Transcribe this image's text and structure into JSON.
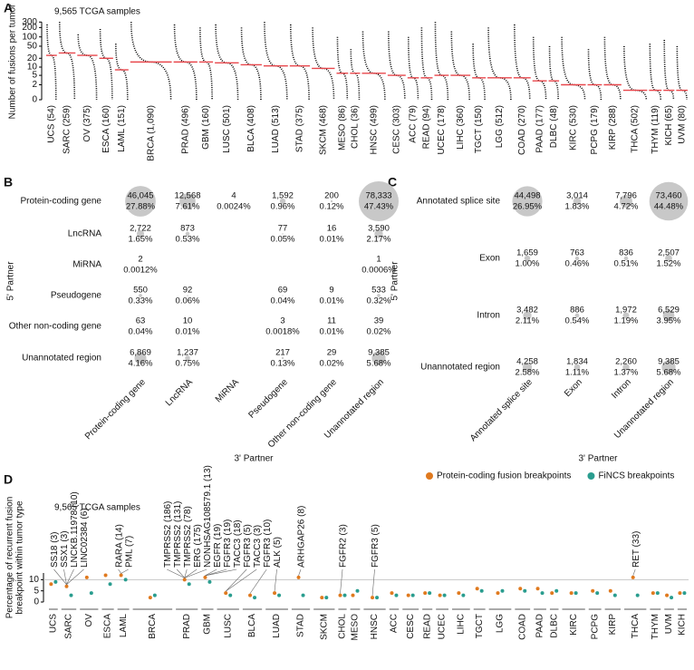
{
  "chart_data": [
    {
      "type": "dotplot",
      "title": "9,565 TCGA samples",
      "ylabel": "Number of fusions per tumor",
      "categories": [
        "UCS",
        "SARC",
        "OV",
        "ESCA",
        "LAML",
        "BRCA",
        "PRAD",
        "GBM",
        "LUSC",
        "BLCA",
        "LUAD",
        "STAD",
        "SKCM",
        "MESO",
        "CHOL",
        "HNSC",
        "CESC",
        "ACC",
        "READ",
        "UCEC",
        "LIHC",
        "TGCT",
        "LGG",
        "COAD",
        "PAAD",
        "DLBC",
        "KIRC",
        "PCPG",
        "KIRP",
        "THCA",
        "THYM",
        "KICH",
        "UVM"
      ],
      "category_labels": [
        "UCS (54)",
        "SARC (259)",
        "OV (375)",
        "ESCA (160)",
        "LAML (151)",
        "BRCA (1,090)",
        "PRAD (496)",
        "GBM (160)",
        "LUSC (501)",
        "BLCA (408)",
        "LUAD (513)",
        "STAD (375)",
        "SKCM (468)",
        "MESO (86)",
        "CHOL (36)",
        "HNSC (499)",
        "CESC (303)",
        "ACC (79)",
        "READ (94)",
        "UCEC (178)",
        "LIHC (360)",
        "TGCT (150)",
        "LGG (512)",
        "COAD (270)",
        "PAAD (177)",
        "DLBC (48)",
        "KIRC (530)",
        "PCPG (179)",
        "KIRP (288)",
        "THCA (502)",
        "THYM (119)",
        "KICH (65)",
        "UVM (80)"
      ],
      "samples": [
        54,
        259,
        375,
        160,
        151,
        1090,
        496,
        160,
        501,
        408,
        513,
        375,
        468,
        86,
        36,
        499,
        303,
        79,
        94,
        178,
        360,
        150,
        512,
        270,
        177,
        48,
        530,
        179,
        288,
        502,
        119,
        65,
        80
      ],
      "max": [
        250,
        300,
        120,
        180,
        60,
        300,
        250,
        200,
        250,
        200,
        300,
        250,
        200,
        100,
        40,
        150,
        150,
        100,
        200,
        300,
        150,
        60,
        200,
        250,
        100,
        50,
        100,
        40,
        100,
        50,
        60,
        80,
        50
      ],
      "median": [
        25,
        30,
        25,
        20,
        8,
        15,
        15,
        15,
        14,
        12,
        11,
        11,
        9,
        6,
        6,
        6,
        5,
        4,
        4,
        5,
        5,
        4,
        4,
        4,
        3,
        3,
        2,
        2,
        2,
        1,
        1,
        1,
        1
      ],
      "min": [
        0,
        0,
        0,
        0,
        0,
        0,
        0,
        0,
        0,
        0,
        0,
        0,
        0,
        0,
        0,
        0,
        0,
        0,
        0,
        0,
        0,
        0,
        0,
        0,
        0,
        0,
        0,
        0,
        0,
        0,
        0,
        0,
        0
      ],
      "ylim": [
        0,
        400
      ],
      "yticks": [
        0,
        2,
        5,
        10,
        20,
        50,
        100,
        200,
        300
      ],
      "scale": "log1p",
      "color": "#000000",
      "median_color": "#e8474c"
    },
    {
      "type": "bubble-matrix",
      "ylabel": "5' Partner",
      "xlabel": "3' Partner",
      "color": "#c8c8c8",
      "categories": [
        "Protein-coding gene",
        "LncRNA",
        "MiRNA",
        "Pseudogene",
        "Other non-coding gene",
        "Unannotated region"
      ],
      "series": [
        {
          "name": "Protein-coding gene",
          "values": [
            46045,
            12568,
            4,
            1592,
            200,
            78333
          ],
          "value_labels": [
            "46,045",
            "12,568",
            "4",
            "1,592",
            "200",
            "78,333"
          ],
          "percent_labels": [
            "27.88%",
            "7.61%",
            "0.0024%",
            "0.96%",
            "0.12%",
            "47.43%"
          ]
        },
        {
          "name": "LncRNA",
          "values": [
            2722,
            873,
            null,
            77,
            16,
            3590
          ],
          "value_labels": [
            "2,722",
            "873",
            null,
            "77",
            "16",
            "3,590"
          ],
          "percent_labels": [
            "1.65%",
            "0.53%",
            null,
            "0.05%",
            "0.01%",
            "2.17%"
          ]
        },
        {
          "name": "MiRNA",
          "values": [
            2,
            null,
            null,
            null,
            null,
            1
          ],
          "value_labels": [
            "2",
            null,
            null,
            null,
            null,
            "1"
          ],
          "percent_labels": [
            "0.0012%",
            null,
            null,
            null,
            null,
            "0.0006%"
          ]
        },
        {
          "name": "Pseudogene",
          "values": [
            550,
            92,
            null,
            69,
            9,
            533
          ],
          "value_labels": [
            "550",
            "92",
            null,
            "69",
            "9",
            "533"
          ],
          "percent_labels": [
            "0.33%",
            "0.06%",
            null,
            "0.04%",
            "0.01%",
            "0.32%"
          ]
        },
        {
          "name": "Other non-coding gene",
          "values": [
            63,
            10,
            null,
            3,
            11,
            39
          ],
          "value_labels": [
            "63",
            "10",
            null,
            "3",
            "11",
            "39"
          ],
          "percent_labels": [
            "0.04%",
            "0.01%",
            null,
            "0.0018%",
            "0.01%",
            "0.02%"
          ]
        },
        {
          "name": "Unannotated region",
          "values": [
            6869,
            1237,
            null,
            217,
            29,
            9385
          ],
          "value_labels": [
            "6,869",
            "1,237",
            null,
            "217",
            "29",
            "9,385"
          ],
          "percent_labels": [
            "4.16%",
            "0.75%",
            null,
            "0.13%",
            "0.02%",
            "5.68%"
          ]
        }
      ]
    },
    {
      "type": "bubble-matrix",
      "ylabel": "5' Partner",
      "xlabel": "3' Partner",
      "color": "#c8c8c8",
      "categories": [
        "Annotated splice site",
        "Exon",
        "Intron",
        "Unannotated region"
      ],
      "series": [
        {
          "name": "Annotated splice site",
          "values": [
            44498,
            3014,
            7796,
            73460
          ],
          "value_labels": [
            "44,498",
            "3,014",
            "7,796",
            "73,460"
          ],
          "percent_labels": [
            "26.95%",
            "1.83%",
            "4.72%",
            "44.48%"
          ]
        },
        {
          "name": "Exon",
          "values": [
            1659,
            763,
            836,
            2507
          ],
          "value_labels": [
            "1,659",
            "763",
            "836",
            "2,507"
          ],
          "percent_labels": [
            "1.00%",
            "0.46%",
            "0.51%",
            "1.52%"
          ]
        },
        {
          "name": "Intron",
          "values": [
            3482,
            886,
            1972,
            6529
          ],
          "value_labels": [
            "3,482",
            "886",
            "1,972",
            "6,529"
          ],
          "percent_labels": [
            "2.11%",
            "0.54%",
            "1.19%",
            "3.95%"
          ]
        },
        {
          "name": "Unannotated region",
          "values": [
            4258,
            1834,
            2260,
            9385
          ],
          "value_labels": [
            "4,258",
            "1,834",
            "2,260",
            "9,385"
          ],
          "percent_labels": [
            "2.58%",
            "1.11%",
            "1.37%",
            "5.68%"
          ]
        }
      ]
    },
    {
      "type": "scatter",
      "title": "9,565 TCGA samples",
      "ylabel": [
        "Percentage of recurrent fusion",
        "breakpoint within tumor type"
      ],
      "categories": [
        "UCS",
        "SARC",
        "OV",
        "ESCA",
        "LAML",
        "BRCA",
        "PRAD",
        "GBM",
        "LUSC",
        "BLCA",
        "LUAD",
        "STAD",
        "SKCM",
        "CHOL",
        "MESO",
        "HNSC",
        "ACC",
        "CESC",
        "READ",
        "UCEC",
        "LIHC",
        "TGCT",
        "LGG",
        "COAD",
        "PAAD",
        "DLBC",
        "KIRC",
        "PCPG",
        "KIRP",
        "THCA",
        "THYM",
        "UVM",
        "KICH"
      ],
      "series": [
        {
          "name": "Protein-coding fusion breakpoints",
          "color": "#e07a1f",
          "values": [
            8,
            7,
            11,
            12,
            12,
            2,
            10,
            11,
            4,
            3,
            4,
            11,
            2,
            3,
            3,
            2,
            4,
            3,
            4,
            3,
            4,
            6,
            4,
            6,
            6,
            4,
            4,
            5,
            5,
            11,
            4,
            3,
            4
          ]
        },
        {
          "name": "FiNCS breakpoints",
          "color": "#2a9d8f",
          "values": [
            9,
            3,
            4,
            8,
            10,
            3,
            8,
            9,
            3,
            2,
            3,
            3,
            2,
            3,
            5,
            2,
            3,
            3,
            4,
            3,
            3,
            5,
            5,
            5,
            4,
            5,
            4,
            4,
            3,
            3,
            4,
            2,
            4
          ]
        }
      ],
      "ylim": [
        0,
        13
      ],
      "yticks": [
        0,
        5,
        10
      ],
      "reference_line": 10,
      "legend": "top-right",
      "annotations": [
        {
          "label": "SS18 (3)",
          "category": "SARC"
        },
        {
          "label": "SSX1 (3)",
          "category": "SARC"
        },
        {
          "label": "LNCKB.11978 (10)",
          "category": "SARC"
        },
        {
          "label": "LINC02384 (6)",
          "category": "SARC"
        },
        {
          "label": "RARA (14)",
          "category": "LAML"
        },
        {
          "label": "PML (7)",
          "category": "LAML"
        },
        {
          "label": "TMPRSS2 (186)",
          "category": "PRAD"
        },
        {
          "label": "TMPRSS2 (131)",
          "category": "PRAD"
        },
        {
          "label": "TMPRSS2 (78)",
          "category": "PRAD"
        },
        {
          "label": "ERG (175)",
          "category": "PRAD"
        },
        {
          "label": "NONHSAG108579.1 (13)",
          "category": "PRAD"
        },
        {
          "label": "EGFR (19)",
          "category": "GBM"
        },
        {
          "label": "FGFR3 (19)",
          "category": "GBM"
        },
        {
          "label": "TACC3 (18)",
          "category": "GBM"
        },
        {
          "label": "FGFR3 (5)",
          "category": "LUSC"
        },
        {
          "label": "TACC3 (3)",
          "category": "LUSC"
        },
        {
          "label": "FGFR3 (10)",
          "category": "BLCA"
        },
        {
          "label": "ALK (5)",
          "category": "LUAD"
        },
        {
          "label": "ARHGAP26 (8)",
          "category": "STAD"
        },
        {
          "label": "FGFR2 (3)",
          "category": "CHOL"
        },
        {
          "label": "FGFR3 (5)",
          "category": "HNSC"
        },
        {
          "label": "RET (33)",
          "category": "THCA"
        }
      ]
    }
  ]
}
